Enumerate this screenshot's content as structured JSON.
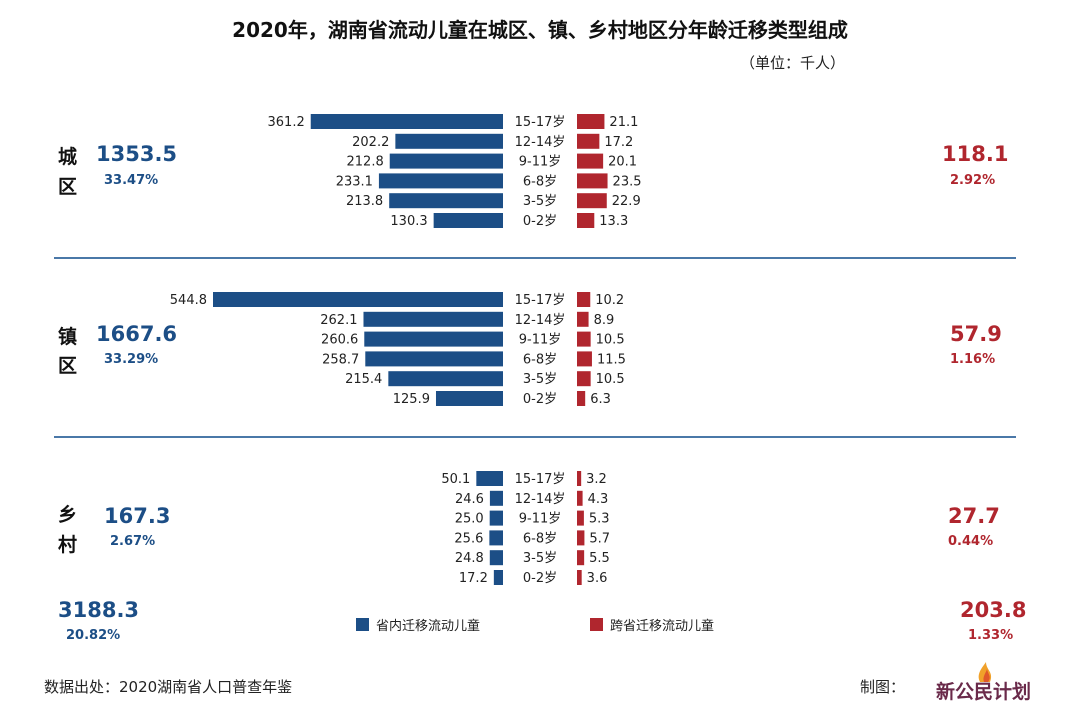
{
  "title": "2020年，湖南省流动儿童在城区、镇、乡村地区分年龄迁移类型组成",
  "unit": "（单位：千人）",
  "colors": {
    "within": "#1c4e86",
    "cross": "#b0262e"
  },
  "chart_data": {
    "type": "bar",
    "categories": [
      "15-17岁",
      "12-14岁",
      "9-11岁",
      "6-8岁",
      "3-5岁",
      "0-2岁"
    ],
    "panels": [
      {
        "region_chars": [
          "城",
          "区"
        ],
        "within_total": "1353.5",
        "within_pct": "33.47%",
        "cross_total": "118.1",
        "cross_pct": "2.92%",
        "series": [
          {
            "name": "省内迁移流动儿童",
            "values": [
              361.2,
              202.2,
              212.8,
              233.1,
              213.8,
              130.3
            ]
          },
          {
            "name": "跨省迁移流动儿童",
            "values": [
              21.1,
              17.2,
              20.1,
              23.5,
              22.9,
              13.3
            ]
          }
        ]
      },
      {
        "region_chars": [
          "镇",
          "区"
        ],
        "within_total": "1667.6",
        "within_pct": "33.29%",
        "cross_total": "57.9",
        "cross_pct": "1.16%",
        "series": [
          {
            "name": "省内迁移流动儿童",
            "values": [
              544.8,
              262.1,
              260.6,
              258.7,
              215.4,
              125.9
            ]
          },
          {
            "name": "跨省迁移流动儿童",
            "values": [
              10.2,
              8.9,
              10.5,
              11.5,
              10.5,
              6.3
            ]
          }
        ]
      },
      {
        "region_chars": [
          "乡",
          "村"
        ],
        "within_total": "167.3",
        "within_pct": "2.67%",
        "cross_total": "27.7",
        "cross_pct": "0.44%",
        "series": [
          {
            "name": "省内迁移流动儿童",
            "values": [
              50.1,
              24.6,
              25.0,
              25.6,
              24.8,
              17.2
            ]
          },
          {
            "name": "跨省迁移流动儿童",
            "values": [
              3.2,
              4.3,
              5.3,
              5.7,
              5.5,
              3.6
            ]
          }
        ]
      }
    ],
    "totals": {
      "within_total": "3188.3",
      "within_pct": "20.82%",
      "cross_total": "203.8",
      "cross_pct": "1.33%"
    },
    "legend": [
      "省内迁移流动儿童",
      "跨省迁移流动儿童"
    ],
    "legend_position": "bottom-center"
  },
  "footer": {
    "source": "数据出处：2020湖南省人口普查年鉴",
    "made_by": "制图：",
    "logo_text": "新公民计划"
  }
}
